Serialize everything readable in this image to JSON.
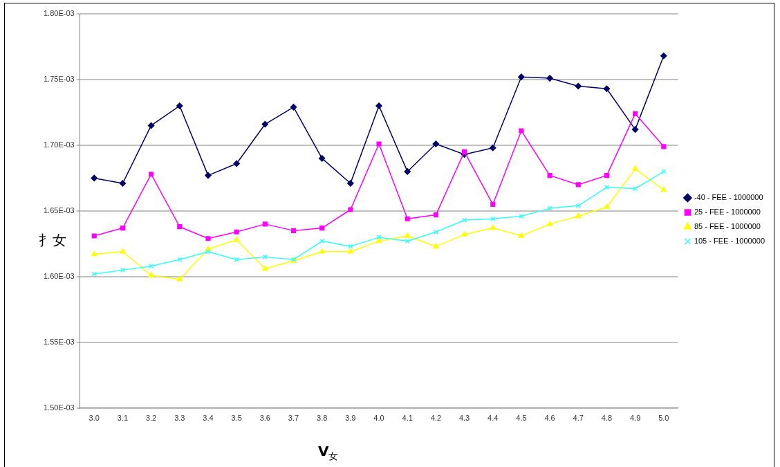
{
  "chart_data": {
    "type": "line",
    "xlabel": "V$_{女}$",
    "ylabel": "扌女",
    "categories": [
      "3.0",
      "3.1",
      "3.2",
      "3.3",
      "3.4",
      "3.5",
      "3.6",
      "3.7",
      "3.8",
      "3.9",
      "4.0",
      "4.1",
      "4.2",
      "4.3",
      "4.4",
      "4.5",
      "4.6",
      "4.7",
      "4.8",
      "4.9",
      "5.0"
    ],
    "series": [
      {
        "name": "-40 - FEE - 1000000",
        "color": "#000066",
        "marker": "diamond",
        "values": [
          0.001675,
          0.001671,
          0.001715,
          0.00173,
          0.001677,
          0.001686,
          0.001716,
          0.001729,
          0.00169,
          0.001671,
          0.00173,
          0.00168,
          0.001701,
          0.001693,
          0.001698,
          0.001752,
          0.001751,
          0.001745,
          0.001743,
          0.001712,
          0.001768
        ]
      },
      {
        "name": "25 - FEE - 1000000",
        "color": "#ff00ff",
        "marker": "square",
        "values": [
          0.001631,
          0.001637,
          0.001678,
          0.001638,
          0.001629,
          0.001634,
          0.00164,
          0.001635,
          0.001637,
          0.001651,
          0.001701,
          0.001644,
          0.001647,
          0.001695,
          0.001655,
          0.001711,
          0.001677,
          0.00167,
          0.001677,
          0.001724,
          0.001699
        ]
      },
      {
        "name": "85 - FEE - 1000000",
        "color": "#ffff00",
        "marker": "triangle",
        "values": [
          0.001617,
          0.001619,
          0.001601,
          0.001598,
          0.001621,
          0.001628,
          0.001606,
          0.001612,
          0.001619,
          0.001619,
          0.001627,
          0.001631,
          0.001623,
          0.001632,
          0.001637,
          0.001631,
          0.00164,
          0.001646,
          0.001653,
          0.001682,
          0.001666
        ]
      },
      {
        "name": "105 - FEE - 1000000",
        "color": "#33ffff",
        "marker": "cross",
        "values": [
          0.001602,
          0.001605,
          0.001608,
          0.001613,
          0.001619,
          0.001613,
          0.001615,
          0.001613,
          0.001627,
          0.001623,
          0.00163,
          0.001627,
          0.001634,
          0.001643,
          0.001644,
          0.001646,
          0.001652,
          0.001654,
          0.001668,
          0.001667,
          0.00168
        ]
      }
    ],
    "ylim": [
      0.0015,
      0.0018
    ],
    "yticks": [
      {
        "value": 0.0015,
        "label": "1.50E-03"
      },
      {
        "value": 0.00155,
        "label": "1.55E-03"
      },
      {
        "value": 0.0016,
        "label": "1.60E-03"
      },
      {
        "value": 0.00165,
        "label": "1.65E-03"
      },
      {
        "value": 0.0017,
        "label": "1.70E-03"
      },
      {
        "value": 0.00175,
        "label": "1.75E-03"
      },
      {
        "value": 0.0018,
        "label": "1.80E-03"
      }
    ],
    "grid": "y",
    "legend": "right",
    "line_style": "solid"
  }
}
